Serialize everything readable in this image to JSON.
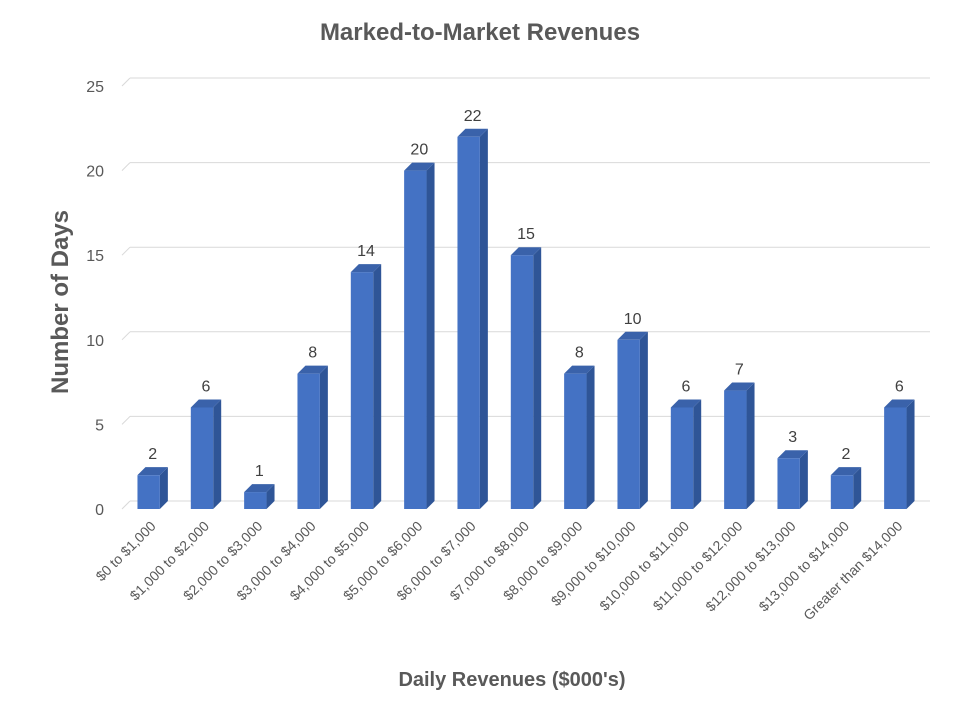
{
  "chart_data": {
    "type": "bar",
    "title": "Marked-to-Market Revenues",
    "xlabel": "Daily Revenues ($000's)",
    "ylabel": "Number of Days",
    "ylim": [
      0,
      25
    ],
    "yticks": [
      0,
      5,
      10,
      15,
      20,
      25
    ],
    "grid": true,
    "legend": "none",
    "bar_color": "#4472C4",
    "bar_side_color": "#2F5597",
    "bar_top_color": "#3A62AA",
    "categories": [
      "$0 to $1,000",
      "$1,000 to $2,000",
      "$2,000 to $3,000",
      "$3,000 to $4,000",
      "$4,000 to $5,000",
      "$5,000 to $6,000",
      "$6,000 to $7,000",
      "$7,000 to $8,000",
      "$8,000 to $9,000",
      "$9,000 to $10,000",
      "$10,000 to $11,000",
      "$11,000 to $12,000",
      "$12,000 to $13,000",
      "$13,000 to $14,000",
      "Greater than $14,000"
    ],
    "values": [
      2,
      6,
      1,
      8,
      14,
      20,
      22,
      15,
      8,
      10,
      6,
      7,
      3,
      2,
      6
    ]
  }
}
